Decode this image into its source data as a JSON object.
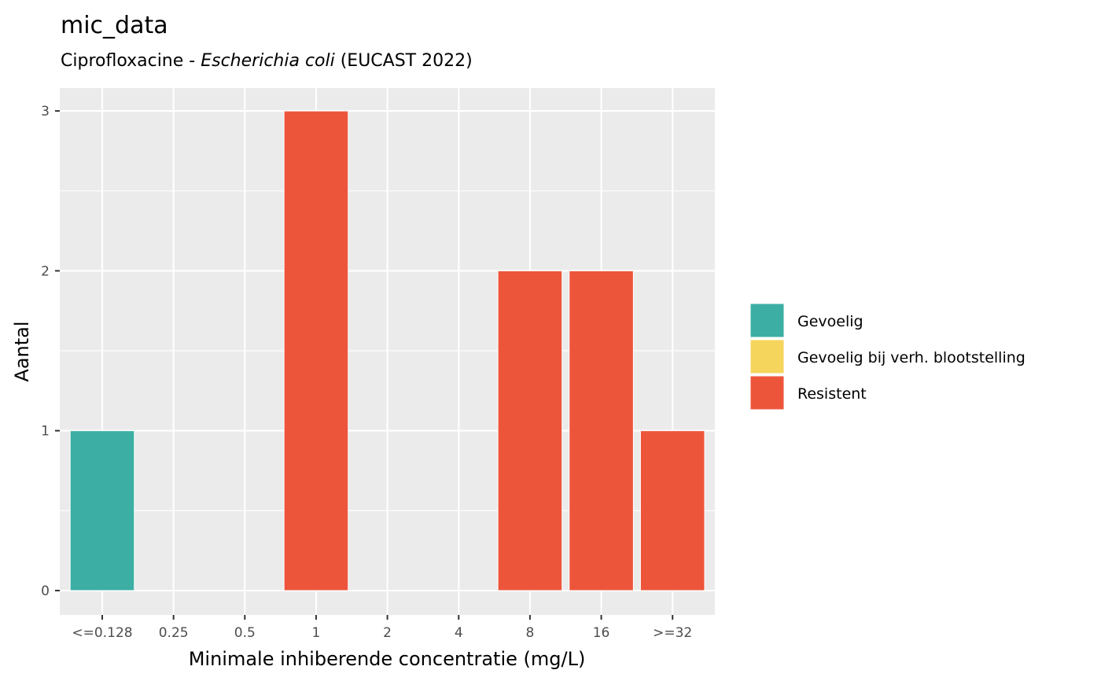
{
  "chart_data": {
    "type": "bar",
    "title": "mic_data",
    "subtitle": {
      "prefix": "Ciprofloxacine - ",
      "organism": "Escherichia coli",
      "suffix": " (EUCAST 2022)"
    },
    "xlabel": "Minimale inhiberende concentratie (mg/L)",
    "ylabel": "Aantal",
    "categories": [
      "<=0.128",
      "0.25",
      "0.5",
      "1",
      "2",
      "4",
      "8",
      "16",
      ">=32"
    ],
    "values": [
      1,
      0,
      0,
      3,
      0,
      0,
      2,
      2,
      1
    ],
    "interpretation": [
      "Gevoelig",
      "",
      "",
      "Resistent",
      "",
      "",
      "Resistent",
      "Resistent",
      "Resistent"
    ],
    "ylim": [
      0,
      3
    ],
    "yticks": [
      0,
      1,
      2,
      3
    ],
    "grid": true,
    "legend_position": "right",
    "legend": [
      {
        "label": "Gevoelig",
        "color": "#3CAEA3"
      },
      {
        "label": "Gevoelig bij verh. blootstelling",
        "color": "#F6D55C"
      },
      {
        "label": "Resistent",
        "color": "#ED553B"
      }
    ]
  }
}
